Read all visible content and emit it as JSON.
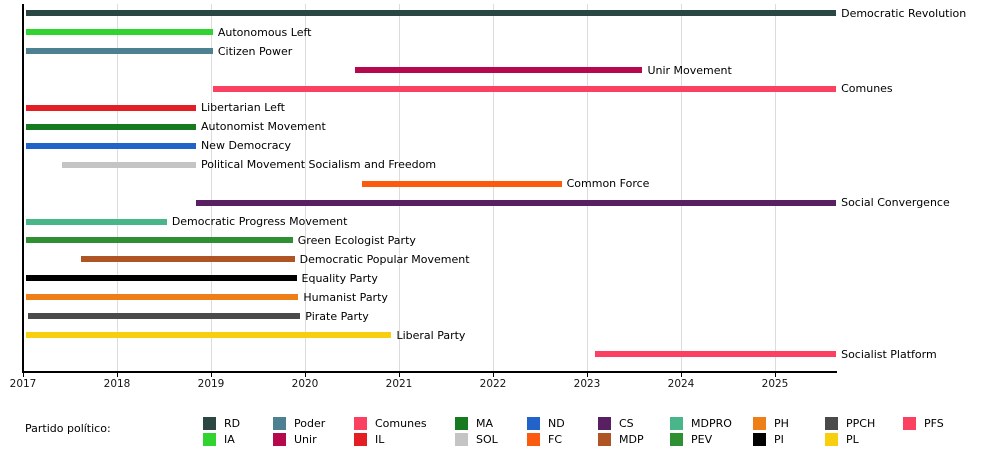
{
  "legend": {
    "title": "Partido político:",
    "entries": [
      [
        "RD",
        "IA"
      ],
      [
        "Poder",
        "Unir"
      ],
      [
        "Comunes",
        "IL"
      ],
      [
        "MA",
        "SOL"
      ],
      [
        "ND",
        "FC"
      ],
      [
        "CS",
        "MDP"
      ],
      [
        "MDPRO",
        "PEV"
      ],
      [
        "PH",
        "PI"
      ],
      [
        "PPCH",
        "PL"
      ],
      [
        "PFS"
      ]
    ]
  },
  "chart_data": {
    "type": "bar",
    "variant": "horizontal-timeline-gantt",
    "title": "",
    "xlabel": "",
    "ylabel": "",
    "xlim": [
      2016.97,
      2025.68
    ],
    "x_ticks": [
      2017,
      2018,
      2019,
      2020,
      2021,
      2022,
      2023,
      2024,
      2025
    ],
    "grid": "vertical year gridlines, light gray",
    "legend_position": "bottom",
    "bar_label_side": "right",
    "series": [
      {
        "label": "Democratic Revolution",
        "abbr": "RD",
        "color": "#2b4743",
        "start": 2017.03,
        "end": 2025.65
      },
      {
        "label": "Autonomous Left",
        "abbr": "IA",
        "color": "#31d331",
        "start": 2017.03,
        "end": 2019.02
      },
      {
        "label": "Citizen Power",
        "abbr": "Poder",
        "color": "#4d8090",
        "start": 2017.03,
        "end": 2019.02
      },
      {
        "label": "Unir Movement",
        "abbr": "Unir",
        "color": "#b5084d",
        "start": 2020.53,
        "end": 2023.59
      },
      {
        "label": "Comunes",
        "abbr": "Comunes",
        "color": "#fb4161",
        "start": 2019.02,
        "end": 2025.65
      },
      {
        "label": "Libertarian Left",
        "abbr": "IL",
        "color": "#e41e25",
        "start": 2017.03,
        "end": 2018.84
      },
      {
        "label": "Autonomist Movement",
        "abbr": "MA",
        "color": "#167a20",
        "start": 2017.03,
        "end": 2018.84
      },
      {
        "label": "New Democracy",
        "abbr": "ND",
        "color": "#2263ca",
        "start": 2017.03,
        "end": 2018.84
      },
      {
        "label": "Political Movement Socialism and Freedom",
        "abbr": "SOL",
        "color": "#c4c4c4",
        "start": 2017.42,
        "end": 2018.84
      },
      {
        "label": "Common Force",
        "abbr": "FC",
        "color": "#fa5b0f",
        "start": 2020.61,
        "end": 2022.73
      },
      {
        "label": "Social Convergence",
        "abbr": "CS",
        "color": "#591f63",
        "start": 2018.84,
        "end": 2025.65
      },
      {
        "label": "Democratic Progress Movement",
        "abbr": "MDPRO",
        "color": "#49b689",
        "start": 2017.03,
        "end": 2018.53
      },
      {
        "label": "Green Ecologist Party",
        "abbr": "PEV",
        "color": "#2e8f33",
        "start": 2017.03,
        "end": 2019.87
      },
      {
        "label": "Democratic Popular Movement",
        "abbr": "MDP",
        "color": "#ae5425",
        "start": 2017.62,
        "end": 2019.89
      },
      {
        "label": "Equality Party",
        "abbr": "PI",
        "color": "#000000",
        "start": 2017.03,
        "end": 2019.91
      },
      {
        "label": "Humanist Party",
        "abbr": "PH",
        "color": "#ee7e18",
        "start": 2017.03,
        "end": 2019.93
      },
      {
        "label": "Pirate Party",
        "abbr": "PPCH",
        "color": "#4a4a4a",
        "start": 2017.05,
        "end": 2019.95
      },
      {
        "label": "Liberal Party",
        "abbr": "PL",
        "color": "#f7cf0e",
        "start": 2017.03,
        "end": 2020.92
      },
      {
        "label": "Socialist Platform",
        "abbr": "PFS",
        "color": "#fb4161",
        "start": 2023.08,
        "end": 2025.65
      }
    ]
  }
}
